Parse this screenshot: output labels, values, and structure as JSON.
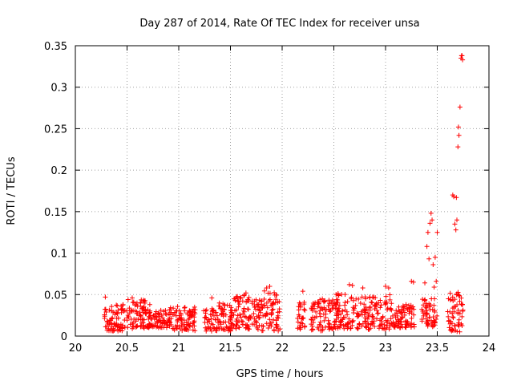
{
  "chart_data": {
    "type": "scatter",
    "title": "Day 287 of 2014, Rate Of TEC Index for receiver unsa",
    "xlabel": "GPS time / hours",
    "ylabel": "ROTI / TECUs",
    "xlim": [
      20,
      24
    ],
    "ylim": [
      0,
      0.35
    ],
    "xticks": [
      20,
      20.5,
      21,
      21.5,
      22,
      22.5,
      23,
      23.5,
      24
    ],
    "xtick_labels": [
      "20",
      "20.5",
      "21",
      "21.5",
      "22",
      "22.5",
      "23",
      "23.5",
      "24"
    ],
    "yticks": [
      0,
      0.05,
      0.1,
      0.15,
      0.2,
      0.25,
      0.3,
      0.35
    ],
    "ytick_labels": [
      "0",
      "0.05",
      "0.1",
      "0.15",
      "0.2",
      "0.25",
      "0.3",
      "0.35"
    ],
    "grid": true,
    "marker": "+",
    "color": "#ff0000",
    "series": [
      {
        "name": "ROTI",
        "segments": [
          {
            "x_start": 20.28,
            "x_end": 20.48,
            "y_min": 0.006,
            "y_max": 0.038
          },
          {
            "x_start": 20.48,
            "x_end": 20.68,
            "y_min": 0.008,
            "y_max": 0.045
          },
          {
            "x_start": 20.68,
            "x_end": 20.92,
            "y_min": 0.01,
            "y_max": 0.032
          },
          {
            "x_start": 20.92,
            "x_end": 21.16,
            "y_min": 0.006,
            "y_max": 0.036
          },
          {
            "x_start": 21.24,
            "x_end": 21.52,
            "y_min": 0.006,
            "y_max": 0.04
          },
          {
            "x_start": 21.52,
            "x_end": 21.8,
            "y_min": 0.008,
            "y_max": 0.05
          },
          {
            "x_start": 21.8,
            "x_end": 21.98,
            "y_min": 0.006,
            "y_max": 0.055
          },
          {
            "x_start": 22.14,
            "x_end": 22.22,
            "y_min": 0.008,
            "y_max": 0.042
          },
          {
            "x_start": 22.28,
            "x_end": 22.5,
            "y_min": 0.006,
            "y_max": 0.045
          },
          {
            "x_start": 22.5,
            "x_end": 22.8,
            "y_min": 0.008,
            "y_max": 0.052
          },
          {
            "x_start": 22.8,
            "x_end": 23.05,
            "y_min": 0.008,
            "y_max": 0.05
          },
          {
            "x_start": 23.05,
            "x_end": 23.28,
            "y_min": 0.01,
            "y_max": 0.04
          },
          {
            "x_start": 23.35,
            "x_end": 23.5,
            "y_min": 0.01,
            "y_max": 0.045
          },
          {
            "x_start": 23.6,
            "x_end": 23.76,
            "y_min": 0.005,
            "y_max": 0.055
          }
        ],
        "points": [
          [
            20.29,
            0.047
          ],
          [
            20.55,
            0.046
          ],
          [
            20.72,
            0.038
          ],
          [
            21.32,
            0.046
          ],
          [
            21.65,
            0.052
          ],
          [
            21.85,
            0.058
          ],
          [
            21.88,
            0.06
          ],
          [
            22.2,
            0.054
          ],
          [
            22.65,
            0.062
          ],
          [
            22.68,
            0.061
          ],
          [
            22.78,
            0.058
          ],
          [
            23.0,
            0.06
          ],
          [
            23.03,
            0.058
          ],
          [
            23.25,
            0.066
          ],
          [
            23.27,
            0.065
          ],
          [
            23.38,
            0.064
          ],
          [
            23.41,
            0.125
          ],
          [
            23.42,
            0.093
          ],
          [
            23.43,
            0.136
          ],
          [
            23.44,
            0.148
          ],
          [
            23.45,
            0.14
          ],
          [
            23.46,
            0.086
          ],
          [
            23.47,
            0.059
          ],
          [
            23.48,
            0.095
          ],
          [
            23.49,
            0.066
          ],
          [
            23.5,
            0.125
          ],
          [
            23.4,
            0.108
          ],
          [
            23.65,
            0.17
          ],
          [
            23.66,
            0.168
          ],
          [
            23.67,
            0.135
          ],
          [
            23.68,
            0.128
          ],
          [
            23.69,
            0.14
          ],
          [
            23.685,
            0.167
          ],
          [
            23.7,
            0.228
          ],
          [
            23.705,
            0.252
          ],
          [
            23.71,
            0.242
          ],
          [
            23.72,
            0.276
          ],
          [
            23.73,
            0.335
          ],
          [
            23.74,
            0.338
          ],
          [
            23.745,
            0.333
          ],
          [
            23.735,
            0.338
          ]
        ]
      }
    ]
  }
}
